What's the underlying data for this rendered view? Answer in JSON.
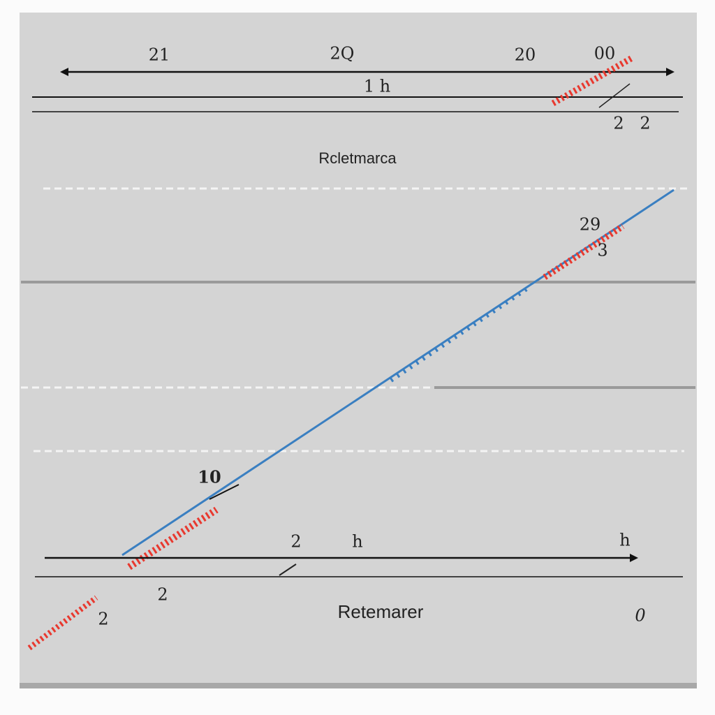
{
  "header": {
    "title": "Rcletmarca"
  },
  "footer": {
    "title": "Retemarer"
  },
  "labels": [
    "21",
    "2Q",
    "20",
    "00",
    "1 h",
    "2",
    "2",
    "29",
    "3",
    "10",
    "2",
    "h",
    "h",
    "2",
    "2",
    "0"
  ]
}
